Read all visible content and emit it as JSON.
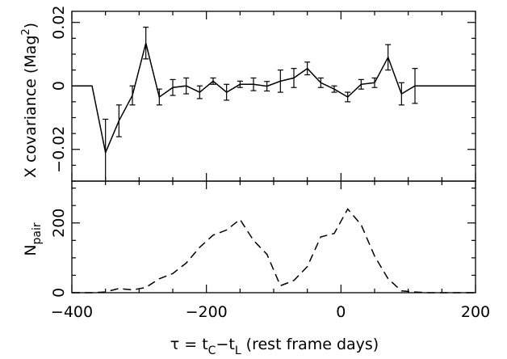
{
  "chart_data": [
    {
      "type": "line",
      "panel": "top",
      "ylabel": {
        "main": "X covariance (Mag",
        "sup": "2",
        "tail": ")"
      },
      "xlim": [
        -400,
        200
      ],
      "ylim": [
        -0.03,
        0.0235
      ],
      "yticks_major": [
        -0.02,
        0,
        0.02
      ],
      "ytick_labels": [
        "−0.02",
        "0",
        "0.02"
      ],
      "series": [
        {
          "style": "solid",
          "x": [
            -400,
            -370,
            -350,
            -330,
            -310,
            -290,
            -270,
            -250,
            -230,
            -210,
            -190,
            -170,
            -150,
            -130,
            -110,
            -90,
            -70,
            -50,
            -30,
            -10,
            10,
            30,
            50,
            70,
            90,
            110,
            130,
            150,
            170,
            190,
            200
          ],
          "y": [
            0,
            0,
            -0.021,
            -0.011,
            -0.003,
            0.0135,
            -0.0035,
            -0.0005,
            0,
            -0.002,
            0.0015,
            -0.002,
            0.0005,
            0.0005,
            -0.0001,
            0.0015,
            0.0025,
            0.0055,
            0.001,
            -0.001,
            -0.0035,
            0.0005,
            0.001,
            0.009,
            -0.0025,
            0,
            0,
            0,
            0,
            0,
            0
          ],
          "err": [
            0,
            0,
            0.0105,
            0.005,
            0.003,
            0.005,
            0.0025,
            0.0025,
            0.0025,
            0.002,
            0.001,
            0.0025,
            0.001,
            0.002,
            0.0015,
            0.0035,
            0.003,
            0.002,
            0.0015,
            0.001,
            0.0015,
            0.0015,
            0.0015,
            0.004,
            0.0035,
            0.0055,
            0,
            0,
            0,
            0,
            0
          ]
        }
      ]
    },
    {
      "type": "line",
      "panel": "bottom",
      "ylabel": {
        "main": "N",
        "sub": "pair"
      },
      "xlabel": "τ = t_C − t_L (rest frame days)",
      "xlim": [
        -400,
        200
      ],
      "ylim": [
        0,
        320
      ],
      "yticks_major": [
        0,
        200
      ],
      "ytick_labels": [
        "0",
        "200"
      ],
      "xticks_major": [
        -400,
        -200,
        0,
        200
      ],
      "xtick_labels": [
        "−400",
        "−200",
        "0",
        "200"
      ],
      "series": [
        {
          "style": "dashed",
          "x": [
            -400,
            -370,
            -350,
            -330,
            -310,
            -290,
            -270,
            -250,
            -230,
            -210,
            -190,
            -170,
            -150,
            -130,
            -110,
            -90,
            -70,
            -50,
            -30,
            -10,
            10,
            30,
            50,
            70,
            90,
            110,
            130,
            150,
            170,
            190,
            200
          ],
          "y": [
            0,
            0,
            2,
            12,
            8,
            15,
            40,
            55,
            85,
            130,
            165,
            180,
            210,
            150,
            110,
            20,
            35,
            75,
            160,
            170,
            240,
            195,
            105,
            40,
            5,
            2,
            0,
            0,
            0,
            0,
            0
          ]
        }
      ]
    }
  ],
  "axis": {
    "x_title": "τ = t",
    "x_sub1": "C",
    "x_dash": "−t",
    "x_sub2": "L",
    "x_tail": " (rest frame days)"
  }
}
